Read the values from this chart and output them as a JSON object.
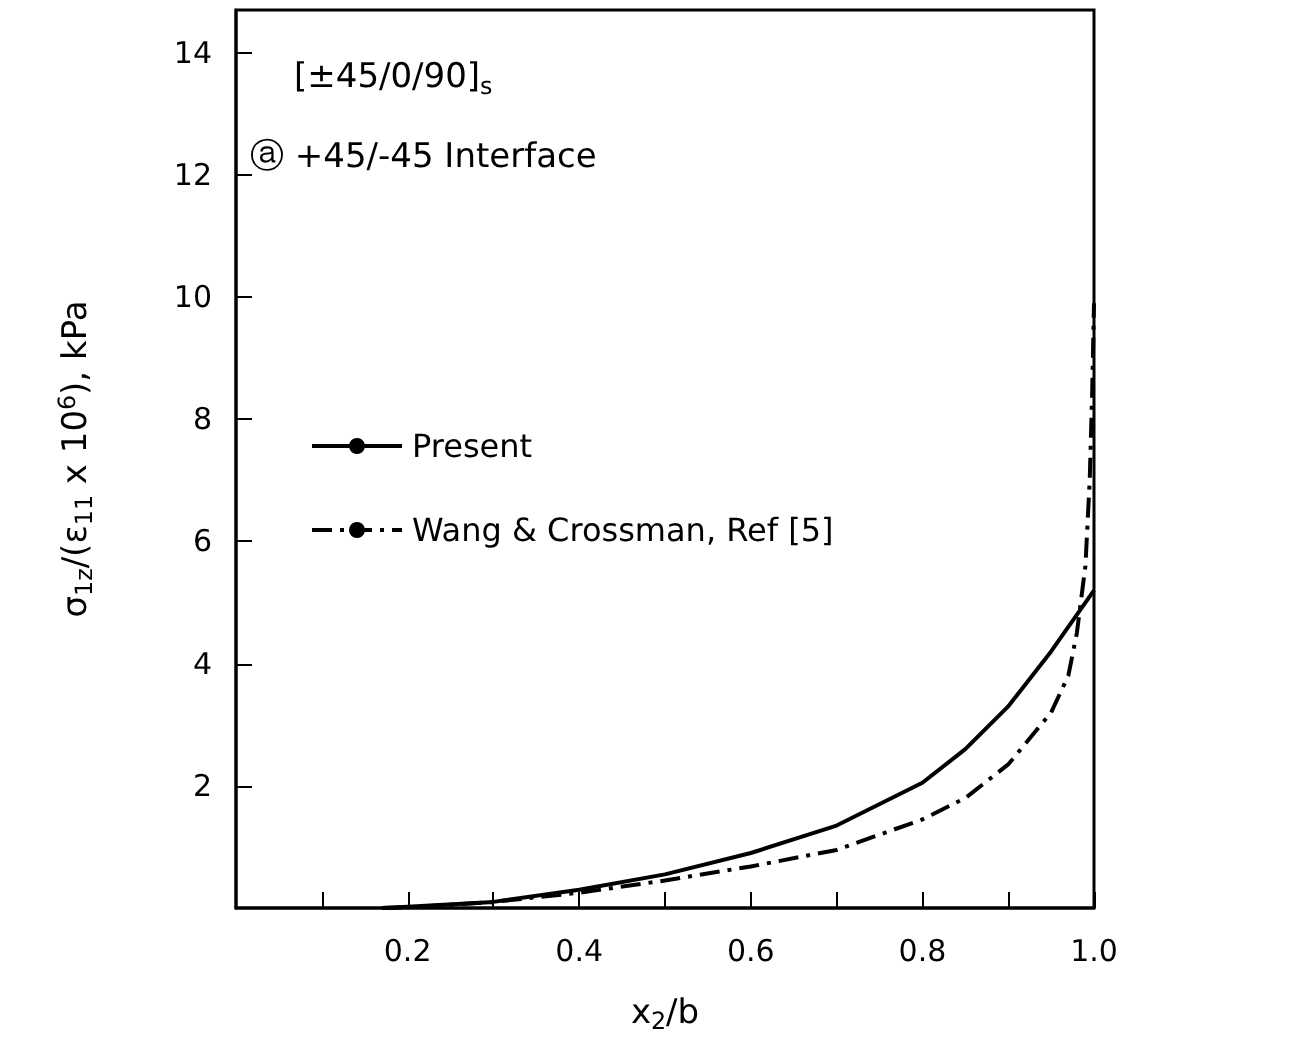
{
  "chart_data": {
    "type": "line",
    "xlabel": "x$_{2}$/b",
    "ylabel": "σ$_{1z}$/(ε$_{11}$ x 10$^{6}$), kPa",
    "annotations": [
      "[±45/0/90]$_{s}$",
      "ⓐ +45/-45 Interface"
    ],
    "xlim": [
      0,
      1
    ],
    "xticks": [
      {
        "value": 0.1,
        "label": null
      },
      0.2,
      {
        "value": 0.3,
        "label": null
      },
      0.4,
      {
        "value": 0.5,
        "label": null
      },
      0.6,
      {
        "value": 0.7,
        "label": null
      },
      0.8,
      {
        "value": 0.9,
        "label": null
      },
      {
        "value": 1,
        "label": "1.0"
      }
    ],
    "ylim": [
      0,
      14.7
    ],
    "yticks": [
      2,
      4,
      6,
      8,
      10,
      12,
      14
    ],
    "grid": false,
    "legend": "left",
    "marker": "none",
    "series": [
      {
        "name": "Present",
        "color": "#000000",
        "line_style": "solid",
        "x": [
          0.17,
          0.2,
          0.3,
          0.4,
          0.5,
          0.6,
          0.7,
          0.8,
          0.85,
          0.9,
          0.95,
          1.0
        ],
        "values": [
          0,
          0.02,
          0.1,
          0.3,
          0.55,
          0.9,
          1.35,
          2.05,
          2.6,
          3.3,
          4.2,
          5.2
        ]
      },
      {
        "name": "Wang & Crossman, Ref [5]",
        "color": "#000000",
        "line_style": "dashed",
        "x": [
          0.17,
          0.2,
          0.3,
          0.4,
          0.5,
          0.6,
          0.7,
          0.8,
          0.85,
          0.9,
          0.95,
          0.97,
          0.98,
          0.99,
          0.995,
          0.998,
          1.0
        ],
        "values": [
          0,
          0.01,
          0.1,
          0.25,
          0.45,
          0.68,
          0.95,
          1.45,
          1.8,
          2.35,
          3.2,
          3.8,
          4.5,
          5.6,
          7,
          8.5,
          9.9
        ]
      }
    ]
  }
}
